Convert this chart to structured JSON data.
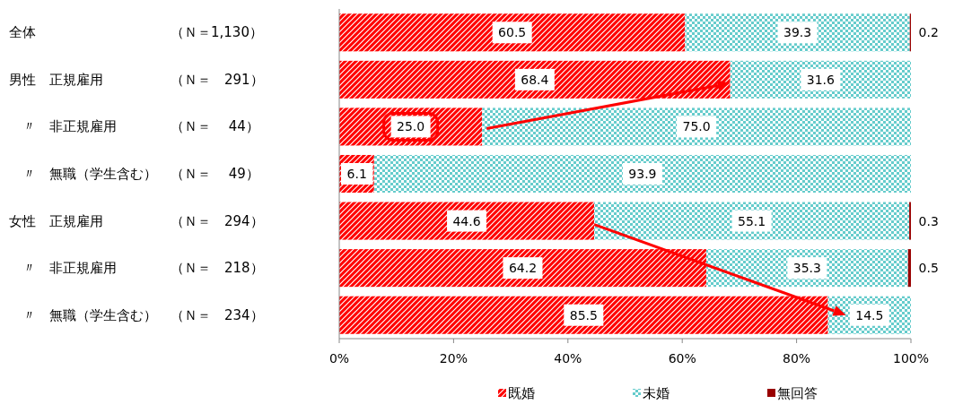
{
  "chart_data": {
    "type": "bar",
    "orientation": "horizontal",
    "stacked": true,
    "categories": [
      "全体　　　　　　　　　　（Ｎ＝1,130）",
      "男性　正規雇用　　　　　（Ｎ＝　291）",
      "　〃　非正規雇用　　　　（Ｎ＝　 44）",
      "　〃　無職（学生含む）　（Ｎ＝　 49）",
      "女性　正規雇用　　　　　（Ｎ＝　294）",
      "　〃　非正規雇用　　　　（Ｎ＝　218）",
      "　〃　無職（学生含む）　（Ｎ＝　234）"
    ],
    "series": [
      {
        "name": "既婚",
        "color": "#ff0000",
        "values": [
          60.5,
          68.4,
          25.0,
          6.1,
          44.6,
          64.2,
          85.5
        ],
        "value_labels": [
          "60.5",
          "68.4",
          "25.0",
          "6.1",
          "44.6",
          "64.2",
          "85.5"
        ]
      },
      {
        "name": "未婚",
        "color": "#66cccc",
        "values": [
          39.3,
          31.6,
          75.0,
          93.9,
          55.1,
          35.3,
          14.5
        ],
        "value_labels": [
          "39.3",
          "31.6",
          "75.0",
          "93.9",
          "55.1",
          "35.3",
          "14.5"
        ]
      },
      {
        "name": "無回答",
        "color": "#990000",
        "values": [
          0.2,
          0,
          0,
          0,
          0.3,
          0.5,
          0
        ],
        "value_labels": [
          "0.2",
          null,
          null,
          null,
          "0.3",
          "0.5",
          null
        ]
      }
    ],
    "xlim": [
      0,
      100
    ],
    "xticks": [
      {
        "value": 0,
        "label": "0%"
      },
      {
        "value": 20,
        "label": "20%"
      },
      {
        "value": 40,
        "label": "40%"
      },
      {
        "value": 60,
        "label": "60%"
      },
      {
        "value": 80,
        "label": "80%"
      },
      {
        "value": 100,
        "label": "100%"
      }
    ],
    "grid": false,
    "legend": "bottom"
  }
}
